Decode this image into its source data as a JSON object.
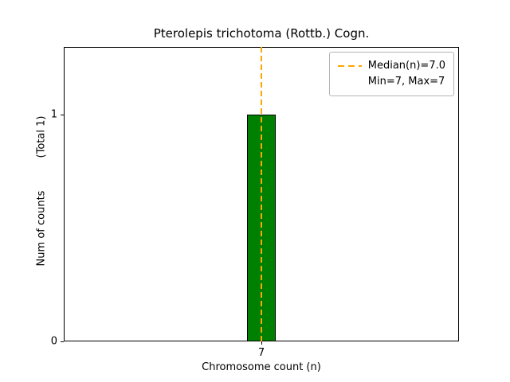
{
  "chart_data": {
    "type": "bar",
    "title": "Pterolepis trichotoma (Rottb.) Cogn.",
    "xlabel": "Chromosome count (n)",
    "ylabel": "Num of counts",
    "ylabel_total": "(Total 1)",
    "categories": [
      "7"
    ],
    "x": [
      7
    ],
    "values": [
      1
    ],
    "bar_width": 0.5,
    "xlim": [
      3.5,
      10.5
    ],
    "ylim": [
      0,
      1.3
    ],
    "xticks": [
      7
    ],
    "yticks": [
      0,
      1
    ],
    "grid": false,
    "legend_position": "upper right",
    "median": 7.0,
    "min": 7,
    "max": 7,
    "legend": [
      {
        "label": "Median(n)=7.0",
        "sample": "dashed-line"
      },
      {
        "label": "Min=7, Max=7",
        "sample": "none"
      }
    ],
    "colors": {
      "bar_fill": "#008000",
      "bar_edge": "#000000",
      "median_line": "#FFA500",
      "axis": "#000000"
    }
  }
}
